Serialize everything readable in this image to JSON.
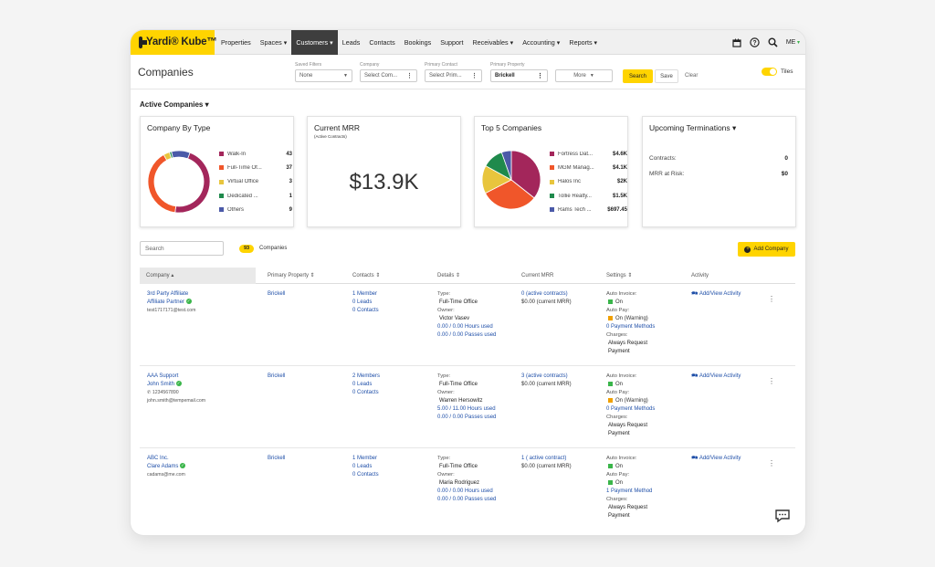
{
  "nav": {
    "logo": "Yardi® Kube™",
    "items": [
      "Properties",
      "Spaces ▾",
      "Customers ▾",
      "Leads",
      "Contacts",
      "Bookings",
      "Support",
      "Receivables ▾",
      "Accounting ▾",
      "Reports ▾"
    ],
    "user": "ME"
  },
  "header": {
    "title": "Companies",
    "saved_filters_label": "Saved Filters",
    "saved_filters_value": "None",
    "company_label": "Company",
    "company_placeholder": "Select Com...",
    "primary_contact_label": "Primary Contact",
    "primary_contact_placeholder": "Select Prim...",
    "primary_property_label": "Primary Property",
    "primary_property_value": "Brickell",
    "more": "More",
    "search": "Search",
    "save": "Save",
    "clear": "Clear",
    "tiles": "Tiles"
  },
  "section": {
    "title": "Active Companies ▾"
  },
  "cards": {
    "by_type": {
      "title": "Company By Type",
      "items": [
        {
          "label": "Walk-In",
          "value": "43",
          "color": "#a3265b"
        },
        {
          "label": "Full-Time Of...",
          "value": "37",
          "color": "#f0562a"
        },
        {
          "label": "Virtual Office",
          "value": "3",
          "color": "#e8c53d"
        },
        {
          "label": "Dedicated ...",
          "value": "1",
          "color": "#1f8a4c"
        },
        {
          "label": "Others",
          "value": "9",
          "color": "#4b5aa8"
        }
      ]
    },
    "mrr": {
      "title": "Current MRR",
      "subtitle": "(Active Contracts)",
      "value": "$13.9K"
    },
    "top5": {
      "title": "Top 5 Companies",
      "items": [
        {
          "label": "Fortress Dat...",
          "value": "$4.6K",
          "color": "#a3265b"
        },
        {
          "label": "MGM Manag...",
          "value": "$4.1K",
          "color": "#f0562a"
        },
        {
          "label": "Halos Inc",
          "value": "$2K",
          "color": "#e8c53d"
        },
        {
          "label": "Tollie Realty...",
          "value": "$1.5K",
          "color": "#1f8a4c"
        },
        {
          "label": "Rams Tech ...",
          "value": "$697.45",
          "color": "#4b5aa8"
        }
      ]
    },
    "terminations": {
      "title": "Upcoming Terminations ▾",
      "contracts_label": "Contracts:",
      "contracts_value": "0",
      "mrr_label": "MRR at Risk:",
      "mrr_value": "$0"
    }
  },
  "list": {
    "search_placeholder": "Search",
    "count": "93",
    "count_label": "Companies",
    "add_button": "Add Company",
    "columns": [
      "Company ▴",
      "Primary Property ⇕",
      "Contacts ⇕",
      "Details ⇕",
      "Current MRR",
      "Settings ⇕",
      "Activity"
    ]
  },
  "rows": [
    {
      "company": "3rd Party Affiliate",
      "contact": "Affiliate Partner",
      "phone": "",
      "email": "test1717171@test.com",
      "property": "Brickell",
      "members": "1 Member",
      "leads": "0 Leads",
      "contacts": "0 Contacts",
      "type_label": "Type:",
      "type": "Full-Time Office",
      "owner_label": "Owner:",
      "owner": "Victor Vasev",
      "hours": "0.00 / 0.00 Hours used",
      "passes": "0.00 / 0.00 Passes used",
      "mrr_contracts": "0 (active contracts)",
      "mrr_current": "$0.00 (current MRR)",
      "auto_invoice_label": "Auto Invoice:",
      "auto_invoice": "On",
      "auto_pay_label": "Auto Pay:",
      "auto_pay": "On (Warning)",
      "payment_methods": "0 Payment Methods",
      "charges_label": "Charges:",
      "charges": "Always Request Payment",
      "activity": "Add/View Activity"
    },
    {
      "company": "AAA Support",
      "contact": "John Smith",
      "phone": "1234567890",
      "email": "john.smith@tempemail.com",
      "property": "Brickell",
      "members": "2 Members",
      "leads": "0 Leads",
      "contacts": "0 Contacts",
      "type_label": "Type:",
      "type": "Full-Time Office",
      "owner_label": "Owner:",
      "owner": "Warren Hersowitz",
      "hours": "5.00 / 11.00 Hours used",
      "passes": "0.00 / 0.00 Passes used",
      "mrr_contracts": "3 (active contracts)",
      "mrr_current": "$0.00 (current MRR)",
      "auto_invoice_label": "Auto Invoice:",
      "auto_invoice": "On",
      "auto_pay_label": "Auto Pay:",
      "auto_pay": "On (Warning)",
      "payment_methods": "0 Payment Methods",
      "charges_label": "Charges:",
      "charges": "Always Request Payment",
      "activity": "Add/View Activity"
    },
    {
      "company": "ABC Inc.",
      "contact": "Clare Adams",
      "phone": "",
      "email": "cadams@me.com",
      "property": "Brickell",
      "members": "1 Member",
      "leads": "0 Leads",
      "contacts": "0 Contacts",
      "type_label": "Type:",
      "type": "Full-Time Office",
      "owner_label": "Owner:",
      "owner": "Maria Rodriguez",
      "hours": "0.00 / 0.00 Hours used",
      "passes": "0.00 / 0.00 Passes used",
      "mrr_contracts": "1 ( active contract)",
      "mrr_current": "$0.00 (current MRR)",
      "auto_invoice_label": "Auto Invoice:",
      "auto_invoice": "On",
      "auto_pay_label": "Auto Pay:",
      "auto_pay": "On",
      "payment_methods": "1 Payment Method",
      "charges_label": "Charges:",
      "charges": "Always Request Payment",
      "activity": "Add/View Activity"
    }
  ],
  "colors": {
    "accent": "#ffd400",
    "link": "#1f4fa8",
    "on": "#3ab54a",
    "warning": "#f0a000"
  }
}
